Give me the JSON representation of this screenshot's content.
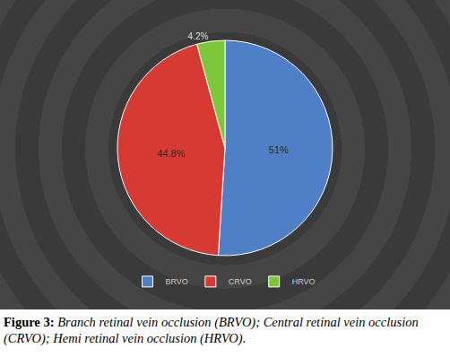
{
  "chart_data": {
    "type": "pie",
    "categories": [
      "BRVO",
      "CRVO",
      "HRVO"
    ],
    "values": [
      51,
      44.8,
      4.2
    ],
    "value_labels": [
      "51%",
      "44.8%",
      "4.2%"
    ],
    "colors": [
      "#4f7fc6",
      "#d63a32",
      "#7dc83a"
    ],
    "data_labels": true,
    "legend": "bottom"
  },
  "caption": {
    "label": "Figure 3:",
    "text": "Branch retinal vein occlusion (BRVO); Central retinal vein occlusion (CRVO); Hemi retinal vein occlusion (HRVO)."
  }
}
